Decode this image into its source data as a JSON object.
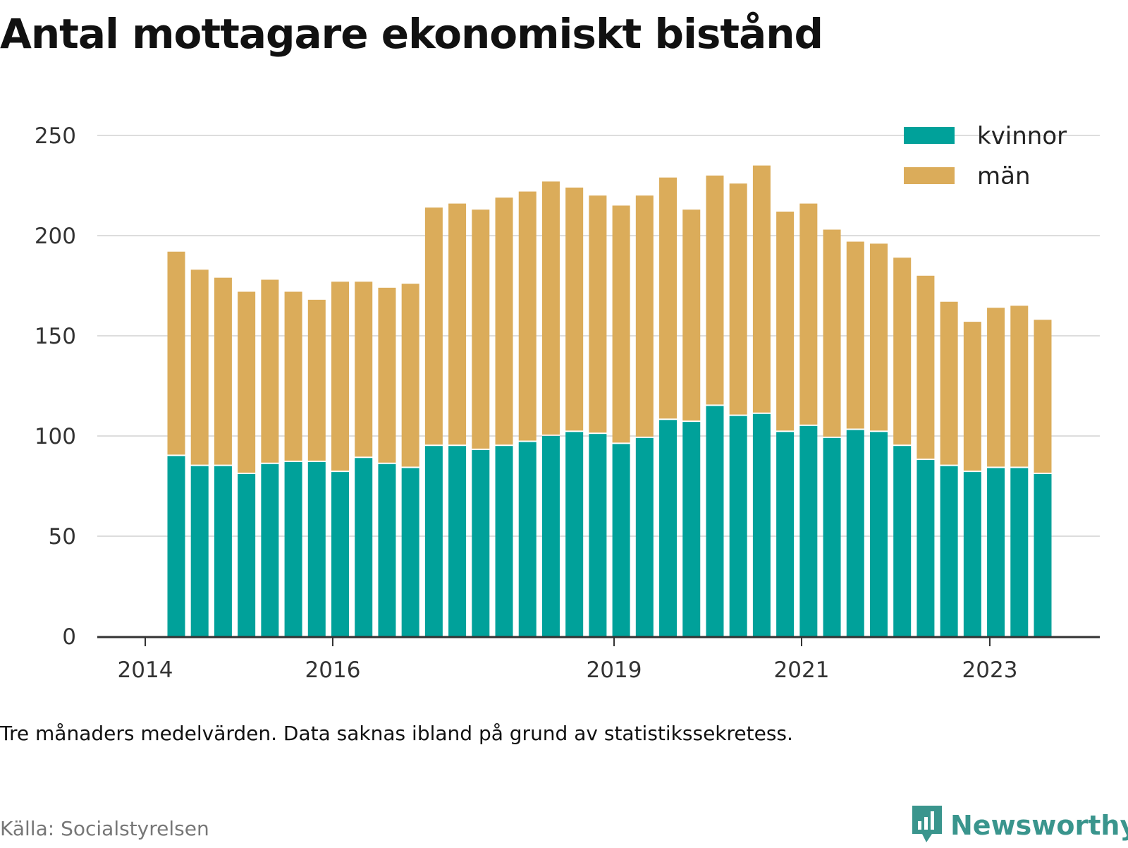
{
  "title": "Antal mottagare ekonomiskt bistånd",
  "note": "Tre månaders medelvärden. Data saknas ibland på grund av statistikssekretess.",
  "source": "Källa: Socialstyrelsen",
  "brand": {
    "name": "Newsworthy",
    "icon": "newsworthy-logo-icon"
  },
  "colors": {
    "kvinnor": "#00a19a",
    "man": "#dbac5a",
    "grid": "#dddddd",
    "axis": "#333333"
  },
  "chart_data": {
    "type": "bar",
    "stacked": true,
    "legend_position": "top-right",
    "grid": true,
    "ylim": [
      0,
      250
    ],
    "yticks": [
      0,
      50,
      100,
      150,
      200,
      250
    ],
    "x_tick_labels": [
      "2014",
      "2016",
      "2019",
      "2021",
      "2023"
    ],
    "series": [
      {
        "name": "kvinnor",
        "values": [
          90,
          85,
          85,
          81,
          86,
          87,
          87,
          82,
          89,
          86,
          84,
          95,
          95,
          93,
          95,
          97,
          100,
          102,
          101,
          96,
          99,
          108,
          107,
          115,
          110,
          111,
          102,
          105,
          99,
          103,
          102,
          95,
          88,
          85,
          82,
          84,
          84,
          81
        ]
      },
      {
        "name": "män",
        "values": [
          102,
          98,
          94,
          91,
          92,
          85,
          81,
          95,
          88,
          88,
          92,
          119,
          121,
          120,
          124,
          125,
          127,
          122,
          119,
          119,
          121,
          121,
          106,
          115,
          116,
          124,
          110,
          111,
          104,
          94,
          94,
          94,
          92,
          82,
          75,
          80,
          81,
          77
        ]
      }
    ]
  }
}
